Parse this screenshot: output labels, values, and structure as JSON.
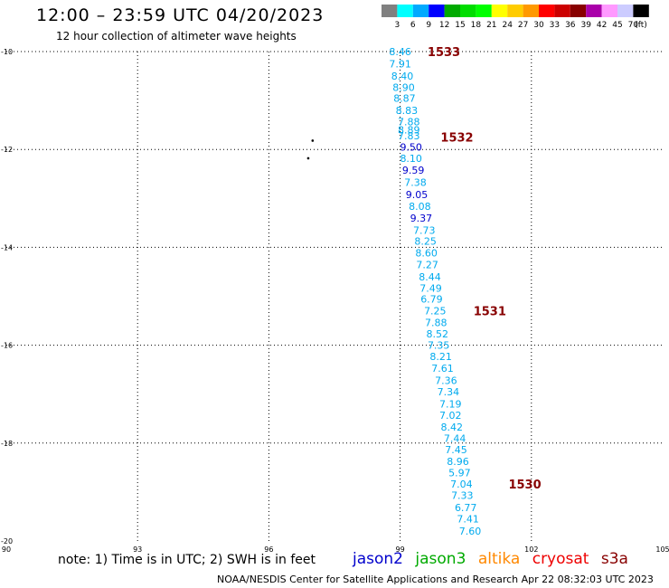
{
  "title": "12:00 – 23:59 UTC 04/20/2023",
  "subtitle": "12 hour collection of altimeter wave heights",
  "color_scale": {
    "labels": [
      "3",
      "6",
      "9",
      "12",
      "15",
      "18",
      "21",
      "24",
      "27",
      "30",
      "33",
      "36",
      "39",
      "42",
      "45",
      "70"
    ],
    "unit": "(ft)",
    "colors": [
      "#808080",
      "#00ffff",
      "#00aaff",
      "#0000ff",
      "#00aa00",
      "#00dd00",
      "#00ff00",
      "#ffff00",
      "#ffcc00",
      "#ff9900",
      "#ff0000",
      "#cc0000",
      "#880000",
      "#aa00aa",
      "#ff99ff",
      "#ccccff",
      "#000000"
    ]
  },
  "note": "note: 1) Time is in UTC; 2) SWH is in feet",
  "missions": [
    {
      "name": "jason2",
      "color": "#0000cc"
    },
    {
      "name": "jason3",
      "color": "#00aa00"
    },
    {
      "name": "altika",
      "color": "#ff8800"
    },
    {
      "name": "cryosat",
      "color": "#ee0000"
    },
    {
      "name": "s3a",
      "color": "#880000"
    }
  ],
  "footer": "NOAA/NESDIS Center for Satellite Applications and Research    Apr 22 08:32:03 UTC 2023",
  "chart_data": {
    "type": "scatter",
    "xlim": [
      90,
      105
    ],
    "ylim": [
      -20,
      -10
    ],
    "x_ticks": [
      "90",
      "93",
      "96",
      "99",
      "102",
      "105"
    ],
    "y_ticks": [
      "-10",
      "-12",
      "-14",
      "-16",
      "-18",
      "-20"
    ],
    "grid": true,
    "series": [
      {
        "mission": "jason3",
        "color": "#00aaee",
        "dark_color": "#0000cc",
        "points": [
          {
            "lon": 99.0,
            "lat": -10.0,
            "v": "8.46"
          },
          {
            "lon": 99.0,
            "lat": -10.25,
            "v": "7.91"
          },
          {
            "lon": 99.05,
            "lat": -10.5,
            "v": "8.40"
          },
          {
            "lon": 99.08,
            "lat": -10.73,
            "v": "8.90"
          },
          {
            "lon": 99.1,
            "lat": -10.95,
            "v": "8.87"
          },
          {
            "lon": 99.15,
            "lat": -11.2,
            "v": "8.83"
          },
          {
            "lon": 99.2,
            "lat": -11.43,
            "v": "7.88"
          },
          {
            "lon": 99.2,
            "lat": -11.6,
            "v": "8.89"
          },
          {
            "lon": 99.2,
            "lat": -11.72,
            "v": "7.83"
          },
          {
            "lon": 99.25,
            "lat": -11.95,
            "v": "9.50",
            "dark": true
          },
          {
            "lon": 99.25,
            "lat": -12.18,
            "v": "8.10"
          },
          {
            "lon": 99.3,
            "lat": -12.42,
            "v": "9.59",
            "dark": true
          },
          {
            "lon": 99.35,
            "lat": -12.67,
            "v": "7.38"
          },
          {
            "lon": 99.38,
            "lat": -12.92,
            "v": "9.05",
            "dark": true
          },
          {
            "lon": 99.45,
            "lat": -13.16,
            "v": "8.08"
          },
          {
            "lon": 99.48,
            "lat": -13.4,
            "v": "9.37",
            "dark": true
          },
          {
            "lon": 99.55,
            "lat": -13.65,
            "v": "7.73"
          },
          {
            "lon": 99.58,
            "lat": -13.87,
            "v": "8.25"
          },
          {
            "lon": 99.6,
            "lat": -14.11,
            "v": "8.60"
          },
          {
            "lon": 99.62,
            "lat": -14.35,
            "v": "7.27"
          },
          {
            "lon": 99.68,
            "lat": -14.6,
            "v": "8.44"
          },
          {
            "lon": 99.7,
            "lat": -14.83,
            "v": "7.49"
          },
          {
            "lon": 99.72,
            "lat": -15.06,
            "v": "6.79"
          },
          {
            "lon": 99.8,
            "lat": -15.3,
            "v": "7.25"
          },
          {
            "lon": 99.82,
            "lat": -15.54,
            "v": "7.88"
          },
          {
            "lon": 99.85,
            "lat": -15.77,
            "v": "8.52"
          },
          {
            "lon": 99.88,
            "lat": -16.0,
            "v": "7.35"
          },
          {
            "lon": 99.93,
            "lat": -16.23,
            "v": "8.21"
          },
          {
            "lon": 99.97,
            "lat": -16.47,
            "v": "7.61"
          },
          {
            "lon": 100.05,
            "lat": -16.72,
            "v": "7.36"
          },
          {
            "lon": 100.1,
            "lat": -16.95,
            "v": "7.34"
          },
          {
            "lon": 100.15,
            "lat": -17.2,
            "v": "7.19"
          },
          {
            "lon": 100.15,
            "lat": -17.43,
            "v": "7.02"
          },
          {
            "lon": 100.18,
            "lat": -17.67,
            "v": "8.42"
          },
          {
            "lon": 100.25,
            "lat": -17.9,
            "v": "7.44"
          },
          {
            "lon": 100.28,
            "lat": -18.13,
            "v": "7.45"
          },
          {
            "lon": 100.32,
            "lat": -18.37,
            "v": "8.96"
          },
          {
            "lon": 100.36,
            "lat": -18.6,
            "v": "5.97"
          },
          {
            "lon": 100.4,
            "lat": -18.84,
            "v": "7.04"
          },
          {
            "lon": 100.42,
            "lat": -19.07,
            "v": "7.33"
          },
          {
            "lon": 100.5,
            "lat": -19.32,
            "v": "6.77"
          },
          {
            "lon": 100.55,
            "lat": -19.55,
            "v": "7.41"
          },
          {
            "lon": 100.6,
            "lat": -19.8,
            "v": "7.60"
          }
        ]
      }
    ],
    "time_labels": [
      {
        "lon": 100.0,
        "lat": -10.0,
        "text": "1533"
      },
      {
        "lon": 100.3,
        "lat": -11.75,
        "text": "1532"
      },
      {
        "lon": 101.05,
        "lat": -15.3,
        "text": "1531"
      },
      {
        "lon": 101.85,
        "lat": -18.84,
        "text": "1530"
      }
    ],
    "island_marks": [
      {
        "lon": 97.0,
        "lat": -11.82
      },
      {
        "lon": 96.9,
        "lat": -12.18
      }
    ]
  }
}
